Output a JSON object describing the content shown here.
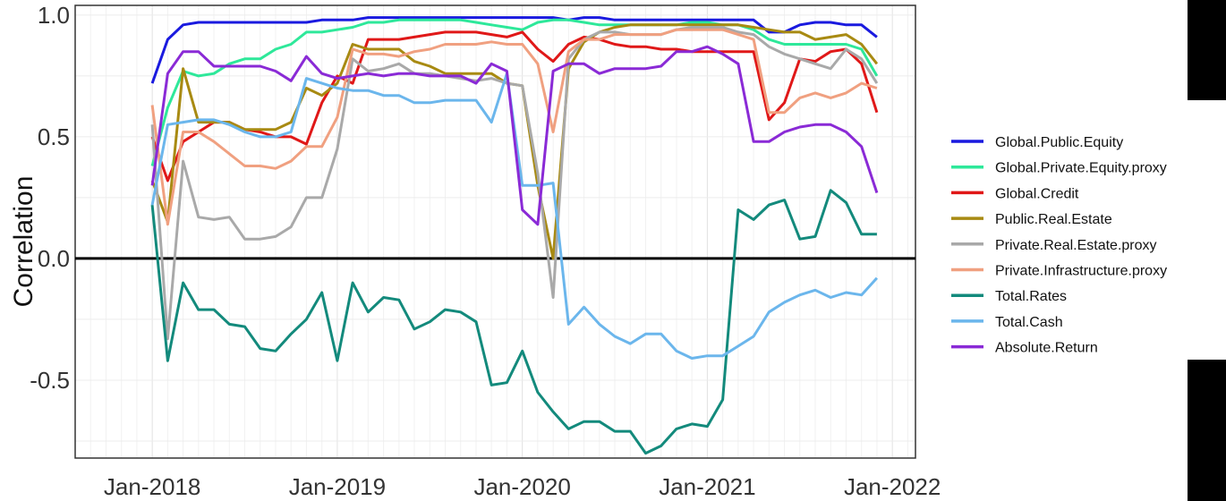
{
  "chart_data": {
    "type": "line",
    "ylabel": "Correlation",
    "xlabel": "",
    "x_tick_labels": [
      "Jan-2018",
      "Jan-2019",
      "Jan-2020",
      "Jan-2021",
      "Jan-2022"
    ],
    "y_tick_labels": [
      "-0.5",
      "0.0",
      "0.5",
      "1.0"
    ],
    "y_ticks": [
      -0.5,
      0.0,
      0.5,
      1.0
    ],
    "x_ticks": [
      0,
      12,
      24,
      36,
      48
    ],
    "xlim": [
      -5,
      49.5
    ],
    "ylim": [
      -0.82,
      1.04
    ],
    "x_unit": "months since Jan-2018",
    "x": [
      0,
      1,
      2,
      3,
      4,
      5,
      6,
      7,
      8,
      9,
      10,
      11,
      12,
      13,
      14,
      15,
      16,
      17,
      18,
      19,
      20,
      21,
      22,
      23,
      24,
      25,
      26,
      27,
      28,
      29,
      30,
      31,
      32,
      33,
      34,
      35,
      36,
      37,
      38,
      39,
      40,
      41,
      42,
      43,
      44,
      45,
      46,
      47
    ],
    "grid": true,
    "zero_line": true,
    "legend_position": "right",
    "series": [
      {
        "name": "Global.Public.Equity",
        "color": "#1a1adf",
        "values": [
          0.72,
          0.9,
          0.96,
          0.97,
          0.97,
          0.97,
          0.97,
          0.97,
          0.97,
          0.97,
          0.97,
          0.98,
          0.98,
          0.98,
          0.99,
          0.99,
          0.99,
          0.99,
          0.99,
          0.99,
          0.99,
          0.99,
          0.99,
          0.99,
          0.99,
          0.99,
          0.99,
          0.98,
          0.99,
          0.99,
          0.98,
          0.98,
          0.98,
          0.98,
          0.98,
          0.98,
          0.98,
          0.98,
          0.98,
          0.98,
          0.93,
          0.93,
          0.96,
          0.97,
          0.97,
          0.96,
          0.96,
          0.91
        ]
      },
      {
        "name": "Global.Private.Equity.proxy",
        "color": "#2ee89a",
        "values": [
          0.38,
          0.62,
          0.77,
          0.75,
          0.76,
          0.8,
          0.82,
          0.82,
          0.86,
          0.88,
          0.93,
          0.93,
          0.94,
          0.95,
          0.97,
          0.97,
          0.98,
          0.98,
          0.98,
          0.98,
          0.98,
          0.97,
          0.96,
          0.95,
          0.94,
          0.97,
          0.98,
          0.98,
          0.97,
          0.96,
          0.96,
          0.96,
          0.96,
          0.96,
          0.96,
          0.97,
          0.97,
          0.96,
          0.96,
          0.94,
          0.9,
          0.88,
          0.88,
          0.88,
          0.88,
          0.88,
          0.86,
          0.75
        ]
      },
      {
        "name": "Global.Credit",
        "color": "#e01818",
        "values": [
          0.5,
          0.32,
          0.48,
          0.52,
          0.56,
          0.56,
          0.53,
          0.52,
          0.5,
          0.5,
          0.47,
          0.64,
          0.75,
          0.72,
          0.9,
          0.9,
          0.9,
          0.91,
          0.92,
          0.93,
          0.93,
          0.93,
          0.92,
          0.91,
          0.93,
          0.86,
          0.81,
          0.88,
          0.91,
          0.9,
          0.88,
          0.87,
          0.87,
          0.86,
          0.86,
          0.85,
          0.85,
          0.85,
          0.85,
          0.85,
          0.57,
          0.64,
          0.82,
          0.81,
          0.85,
          0.86,
          0.8,
          0.6
        ]
      },
      {
        "name": "Public.Real.Estate",
        "color": "#a88a12",
        "values": [
          0.32,
          0.15,
          0.78,
          0.56,
          0.56,
          0.56,
          0.53,
          0.53,
          0.53,
          0.56,
          0.7,
          0.67,
          0.72,
          0.88,
          0.86,
          0.86,
          0.86,
          0.81,
          0.79,
          0.76,
          0.76,
          0.76,
          0.76,
          0.72,
          0.71,
          0.3,
          0.0,
          0.78,
          0.89,
          0.93,
          0.95,
          0.96,
          0.96,
          0.96,
          0.96,
          0.96,
          0.96,
          0.96,
          0.96,
          0.95,
          0.94,
          0.93,
          0.93,
          0.9,
          0.91,
          0.92,
          0.88,
          0.8
        ]
      },
      {
        "name": "Private.Real.Estate.proxy",
        "color": "#a9a9a9",
        "values": [
          0.55,
          -0.33,
          0.4,
          0.17,
          0.16,
          0.17,
          0.08,
          0.08,
          0.09,
          0.13,
          0.25,
          0.25,
          0.45,
          0.82,
          0.77,
          0.78,
          0.8,
          0.76,
          0.76,
          0.75,
          0.74,
          0.73,
          0.74,
          0.72,
          0.71,
          0.35,
          -0.16,
          0.82,
          0.9,
          0.93,
          0.93,
          0.92,
          0.92,
          0.92,
          0.94,
          0.95,
          0.95,
          0.95,
          0.93,
          0.92,
          0.87,
          0.84,
          0.82,
          0.8,
          0.78,
          0.86,
          0.82,
          0.72
        ]
      },
      {
        "name": "Private.Infrastructure.proxy",
        "color": "#f0a080",
        "values": [
          0.63,
          0.14,
          0.52,
          0.52,
          0.48,
          0.43,
          0.38,
          0.38,
          0.37,
          0.4,
          0.46,
          0.46,
          0.58,
          0.86,
          0.84,
          0.84,
          0.83,
          0.85,
          0.86,
          0.88,
          0.88,
          0.88,
          0.89,
          0.88,
          0.88,
          0.8,
          0.52,
          0.85,
          0.9,
          0.9,
          0.92,
          0.92,
          0.92,
          0.92,
          0.94,
          0.94,
          0.94,
          0.94,
          0.92,
          0.9,
          0.6,
          0.6,
          0.66,
          0.68,
          0.66,
          0.68,
          0.72,
          0.7
        ]
      },
      {
        "name": "Total.Rates",
        "color": "#138a7c",
        "values": [
          0.22,
          -0.42,
          -0.1,
          -0.21,
          -0.21,
          -0.27,
          -0.28,
          -0.37,
          -0.38,
          -0.31,
          -0.25,
          -0.14,
          -0.42,
          -0.1,
          -0.22,
          -0.16,
          -0.17,
          -0.29,
          -0.26,
          -0.21,
          -0.22,
          -0.26,
          -0.52,
          -0.51,
          -0.38,
          -0.55,
          -0.63,
          -0.7,
          -0.67,
          -0.67,
          -0.71,
          -0.71,
          -0.8,
          -0.77,
          -0.7,
          -0.68,
          -0.69,
          -0.58,
          0.2,
          0.16,
          0.22,
          0.24,
          0.08,
          0.09,
          0.28,
          0.23,
          0.1,
          0.1
        ]
      },
      {
        "name": "Total.Cash",
        "color": "#6bb6ec",
        "values": [
          0.22,
          0.55,
          0.56,
          0.57,
          0.57,
          0.55,
          0.52,
          0.5,
          0.5,
          0.52,
          0.74,
          0.72,
          0.7,
          0.69,
          0.69,
          0.67,
          0.67,
          0.64,
          0.64,
          0.65,
          0.65,
          0.65,
          0.56,
          0.76,
          0.3,
          0.3,
          0.31,
          -0.27,
          -0.2,
          -0.27,
          -0.32,
          -0.35,
          -0.31,
          -0.31,
          -0.38,
          -0.41,
          -0.4,
          -0.4,
          -0.36,
          -0.32,
          -0.22,
          -0.18,
          -0.15,
          -0.13,
          -0.16,
          -0.14,
          -0.15,
          -0.08
        ]
      },
      {
        "name": "Absolute.Return",
        "color": "#8a2ad6",
        "values": [
          0.3,
          0.76,
          0.85,
          0.85,
          0.79,
          0.79,
          0.79,
          0.79,
          0.77,
          0.73,
          0.83,
          0.76,
          0.74,
          0.75,
          0.76,
          0.75,
          0.76,
          0.76,
          0.75,
          0.75,
          0.75,
          0.72,
          0.8,
          0.77,
          0.2,
          0.14,
          0.77,
          0.8,
          0.8,
          0.76,
          0.78,
          0.78,
          0.78,
          0.79,
          0.85,
          0.85,
          0.87,
          0.84,
          0.8,
          0.48,
          0.48,
          0.52,
          0.54,
          0.55,
          0.55,
          0.52,
          0.46,
          0.27
        ]
      }
    ]
  }
}
